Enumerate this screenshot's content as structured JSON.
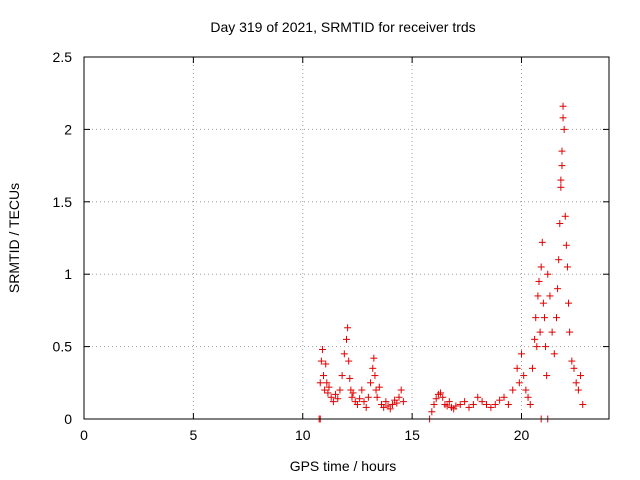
{
  "chart_data": {
    "type": "scatter",
    "title": "Day 319 of 2021, SRMTID for receiver trds",
    "xlabel": "GPS time / hours",
    "ylabel": "SRMTID / TECUs",
    "xlim": [
      0,
      24
    ],
    "ylim": [
      0,
      2.5
    ],
    "xticks": [
      0,
      5,
      10,
      15,
      20
    ],
    "xtick_labels": [
      "0",
      "5",
      "10",
      "15",
      "20"
    ],
    "yticks": [
      0,
      0.5,
      1,
      1.5,
      2,
      2.5
    ],
    "ytick_labels": [
      "0",
      "0.5",
      "1",
      "1.5",
      "2",
      "2.5"
    ],
    "grid": true,
    "marker": "plus",
    "color": "#e00000",
    "series": [
      {
        "name": "trds",
        "x": [
          10.75,
          10.8,
          10.85,
          10.9,
          10.95,
          11.0,
          11.05,
          11.1,
          11.15,
          11.2,
          11.3,
          11.4,
          11.5,
          11.6,
          11.7,
          11.8,
          11.9,
          12.0,
          12.05,
          12.1,
          12.15,
          12.2,
          12.25,
          12.3,
          12.4,
          12.5,
          12.6,
          12.7,
          12.8,
          12.9,
          13.0,
          13.1,
          13.2,
          13.25,
          13.3,
          13.35,
          13.4,
          13.5,
          13.6,
          13.7,
          13.8,
          13.9,
          14.0,
          14.1,
          14.2,
          14.3,
          14.4,
          14.5,
          14.6,
          10.8,
          15.8,
          15.9,
          16.0,
          16.1,
          16.2,
          16.3,
          16.4,
          16.5,
          16.6,
          16.7,
          16.8,
          16.9,
          17.0,
          17.2,
          17.4,
          17.6,
          17.8,
          18.0,
          18.2,
          18.4,
          18.6,
          18.8,
          19.0,
          19.2,
          19.4,
          19.6,
          19.8,
          19.9,
          20.0,
          20.1,
          20.2,
          20.3,
          20.4,
          20.5,
          20.6,
          20.65,
          20.7,
          20.75,
          20.8,
          20.85,
          20.9,
          20.95,
          21.0,
          21.05,
          21.1,
          21.15,
          21.2,
          21.3,
          21.4,
          21.5,
          21.6,
          21.65,
          21.7,
          21.75,
          21.8,
          21.85,
          21.9,
          21.95,
          22.0,
          22.05,
          22.1,
          22.15,
          22.2,
          22.3,
          22.4,
          22.5,
          22.6,
          22.7,
          22.8,
          21.85,
          21.9,
          21.8,
          20.9,
          21.2
        ],
        "y": [
          0.0,
          0.25,
          0.4,
          0.48,
          0.3,
          0.2,
          0.38,
          0.25,
          0.18,
          0.22,
          0.15,
          0.12,
          0.17,
          0.14,
          0.2,
          0.3,
          0.45,
          0.55,
          0.63,
          0.4,
          0.28,
          0.2,
          0.15,
          0.18,
          0.12,
          0.1,
          0.14,
          0.2,
          0.12,
          0.08,
          0.15,
          0.25,
          0.35,
          0.42,
          0.3,
          0.2,
          0.15,
          0.22,
          0.1,
          0.08,
          0.12,
          0.09,
          0.07,
          0.1,
          0.13,
          0.11,
          0.15,
          0.2,
          0.12,
          0.0,
          0.0,
          0.05,
          0.1,
          0.14,
          0.17,
          0.18,
          0.15,
          0.1,
          0.09,
          0.12,
          0.08,
          0.07,
          0.09,
          0.1,
          0.12,
          0.08,
          0.1,
          0.15,
          0.12,
          0.1,
          0.08,
          0.1,
          0.13,
          0.15,
          0.1,
          0.2,
          0.35,
          0.25,
          0.45,
          0.3,
          0.2,
          0.15,
          0.1,
          0.35,
          0.55,
          0.7,
          0.5,
          0.85,
          0.95,
          0.6,
          1.05,
          1.22,
          0.8,
          0.7,
          0.5,
          0.3,
          1.0,
          0.85,
          0.6,
          0.45,
          0.7,
          0.9,
          1.1,
          1.35,
          1.65,
          1.85,
          2.16,
          2.0,
          1.4,
          1.2,
          1.05,
          0.8,
          0.6,
          0.4,
          0.35,
          0.25,
          0.2,
          0.3,
          0.1,
          1.75,
          2.08,
          1.6,
          0.0,
          0.0
        ]
      }
    ]
  }
}
